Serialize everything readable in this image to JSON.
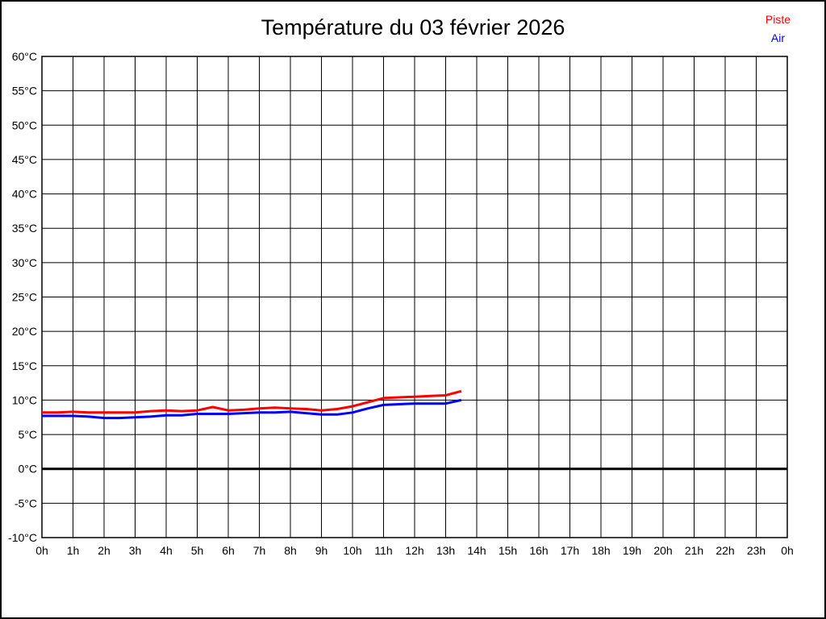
{
  "window": {
    "background": "#ffffff",
    "border_color": "#000000"
  },
  "title": "Température du 03 février 2026",
  "legend": {
    "position": "top-right",
    "items": [
      {
        "label": "Piste",
        "color": "#ff0000"
      },
      {
        "label": "Air",
        "color": "#0000ff"
      }
    ]
  },
  "chart_data": {
    "type": "line",
    "title": "Température du 03 février 2026",
    "xlabel": "",
    "ylabel": "",
    "xlim": [
      0,
      24
    ],
    "ylim": [
      -10,
      60
    ],
    "grid": true,
    "grid_color": "#000000",
    "plot_background": "#ffffff",
    "zero_line": {
      "value": 0,
      "color": "#000000",
      "width": 3
    },
    "x_tick_step_hours": 1,
    "x_tick_labels": [
      "0h",
      "1h",
      "2h",
      "3h",
      "4h",
      "5h",
      "6h",
      "7h",
      "8h",
      "9h",
      "10h",
      "11h",
      "12h",
      "13h",
      "14h",
      "15h",
      "16h",
      "17h",
      "18h",
      "19h",
      "20h",
      "21h",
      "22h",
      "23h",
      "0h"
    ],
    "y_tick_values": [
      60,
      55,
      50,
      45,
      40,
      35,
      30,
      25,
      20,
      15,
      10,
      5,
      0,
      -5,
      -10
    ],
    "y_tick_labels": [
      "60°C",
      "55°C",
      "50°C",
      "45°C",
      "40°C",
      "35°C",
      "30°C",
      "25°C",
      "20°C",
      "15°C",
      "10°C",
      "5°C",
      "0°C",
      "-5°C",
      "-10°C"
    ],
    "legend_position": "top-right",
    "x": [
      0,
      0.5,
      1,
      1.5,
      2,
      2.5,
      3,
      3.5,
      4,
      4.5,
      5,
      5.5,
      6,
      6.5,
      7,
      7.5,
      8,
      8.5,
      9,
      9.5,
      10,
      10.5,
      11,
      11.5,
      12,
      12.5,
      13,
      13.5
    ],
    "series": [
      {
        "name": "Piste",
        "color": "#ff0000",
        "line_width": 3,
        "values": [
          8.2,
          8.2,
          8.3,
          8.2,
          8.2,
          8.2,
          8.2,
          8.4,
          8.5,
          8.4,
          8.5,
          9.0,
          8.5,
          8.6,
          8.8,
          8.9,
          8.8,
          8.7,
          8.5,
          8.7,
          9.1,
          9.7,
          10.3,
          10.4,
          10.5,
          10.6,
          10.7,
          11.3
        ]
      },
      {
        "name": "Air",
        "color": "#0000ff",
        "line_width": 3,
        "values": [
          7.7,
          7.7,
          7.7,
          7.6,
          7.4,
          7.4,
          7.5,
          7.6,
          7.8,
          7.8,
          8.0,
          8.0,
          8.0,
          8.1,
          8.2,
          8.2,
          8.3,
          8.1,
          7.9,
          7.9,
          8.2,
          8.8,
          9.3,
          9.4,
          9.5,
          9.5,
          9.5,
          10.0
        ]
      }
    ]
  }
}
